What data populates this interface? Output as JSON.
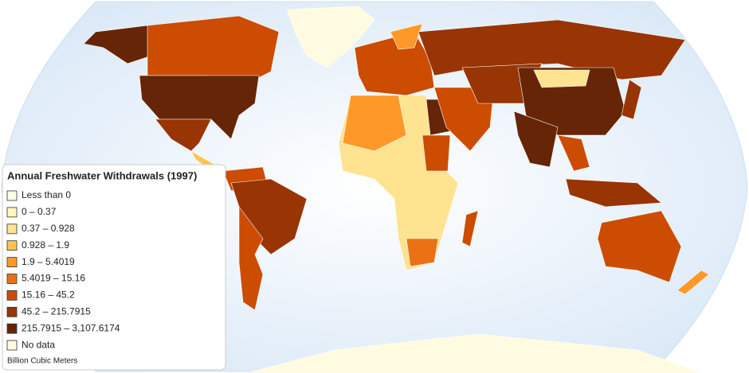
{
  "legend": {
    "title": "Annual Freshwater Withdrawals (1997)",
    "items": [
      {
        "label": "Less than 0",
        "color": "#ffffe5"
      },
      {
        "label": "0 – 0.37",
        "color": "#fff7bc"
      },
      {
        "label": "0.37 – 0.928",
        "color": "#fee391"
      },
      {
        "label": "0.928 – 1.9",
        "color": "#fec44f"
      },
      {
        "label": "1.9 – 5.4019",
        "color": "#fe9929"
      },
      {
        "label": "5.4019 – 15.16",
        "color": "#ec7014"
      },
      {
        "label": "15.16 – 45.2",
        "color": "#cc4c02"
      },
      {
        "label": "45.2 – 215.7915",
        "color": "#993404"
      },
      {
        "label": "215.7915 – 3,107.6174",
        "color": "#662506"
      },
      {
        "label": "No data",
        "color": "#fffbe0"
      }
    ],
    "unit_note": "Billion Cubic Meters"
  }
}
